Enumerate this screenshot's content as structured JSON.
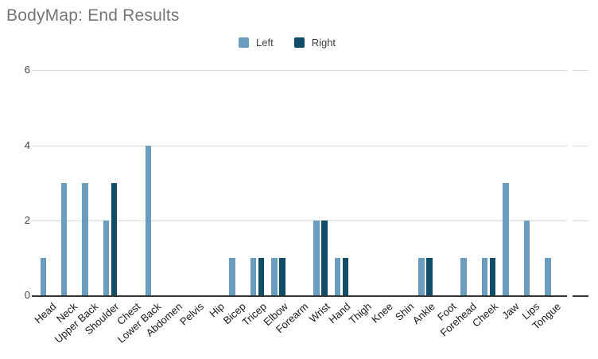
{
  "title": "BodyMap: End Results",
  "chart_data": {
    "type": "bar",
    "title": "BodyMap: End Results",
    "xlabel": "",
    "ylabel": "",
    "ylim": [
      0,
      6
    ],
    "yticks": [
      0,
      2,
      4,
      6
    ],
    "grid": true,
    "legend_position": "top",
    "categories": [
      "Head",
      "Neck",
      "Upper Back",
      "Shoulder",
      "Chest",
      "Lower Back",
      "Abdomen",
      "Pelvis",
      "Hip",
      "Bicep",
      "Tricep",
      "Elbow",
      "Forearm",
      "Wrist",
      "Hand",
      "Thigh",
      "Knee",
      "Shin",
      "Ankle",
      "Foot",
      "Forehead",
      "Cheek",
      "Jaw",
      "Lips",
      "Tongue"
    ],
    "series": [
      {
        "name": "Left",
        "color": "#6a9cbd",
        "values": [
          1,
          3,
          3,
          2,
          0,
          4,
          0,
          0,
          0,
          1,
          1,
          1,
          0,
          2,
          1,
          0,
          0,
          0,
          1,
          0,
          1,
          1,
          3,
          2,
          1
        ]
      },
      {
        "name": "Right",
        "color": "#0f4e66",
        "values": [
          0,
          0,
          0,
          3,
          0,
          0,
          0,
          0,
          0,
          0,
          1,
          1,
          0,
          2,
          1,
          0,
          0,
          0,
          1,
          0,
          0,
          1,
          0,
          0,
          0
        ]
      }
    ]
  },
  "colors": {
    "title_text": "#757575",
    "legend_text": "#3c4043",
    "axis_text": "#424242",
    "category_text": "#1a1a1a",
    "gridline": "#dadada",
    "baseline": "#333333",
    "background": "#ffffff"
  }
}
